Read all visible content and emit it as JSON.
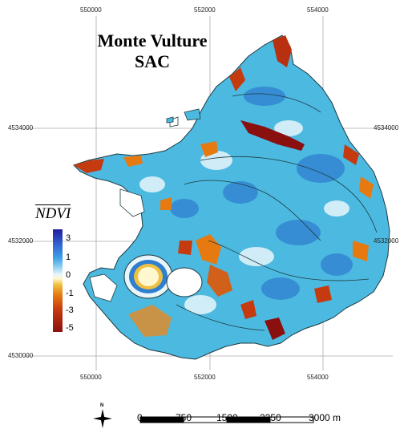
{
  "map": {
    "title_line1": "Monte Vulture",
    "title_line2": "SAC",
    "x_ticks": [
      "550000",
      "552000",
      "554000"
    ],
    "y_ticks": [
      "4534000",
      "4532000",
      "4530000"
    ],
    "legend": {
      "title": "NDVI",
      "ticks": [
        "3",
        "1",
        "0",
        "-1",
        "-3",
        "-5"
      ],
      "colors": [
        "#1f1f9c",
        "#3fa0e8",
        "#e8f6fb",
        "#f0c040",
        "#c63a10",
        "#8a1010"
      ]
    },
    "north_arrow_label": "N",
    "scale_bar": {
      "labels": [
        "0",
        "750",
        "1500",
        "2250",
        "3000 m"
      ]
    },
    "colors": {
      "dominant": "#4cb9e0",
      "positive": "#2f7fd0",
      "negative": "#c63a10",
      "neutral": "#f0c040"
    }
  }
}
